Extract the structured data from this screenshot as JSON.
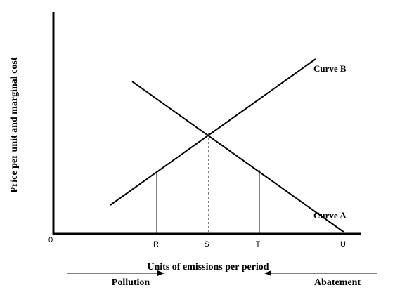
{
  "diagram": {
    "y_axis_label": "Price per unit and marginal cost",
    "x_axis_label": "Units of emissions per period",
    "origin_label": "0",
    "tick_labels": [
      "R",
      "S",
      "T",
      "U"
    ],
    "curve_labels": {
      "curve_a": "Curve A",
      "curve_b": "Curve B"
    },
    "direction_labels": {
      "left": "Pollution",
      "right": "Abatement"
    },
    "colors": {
      "line": "#000000",
      "background": "#ffffff"
    }
  }
}
